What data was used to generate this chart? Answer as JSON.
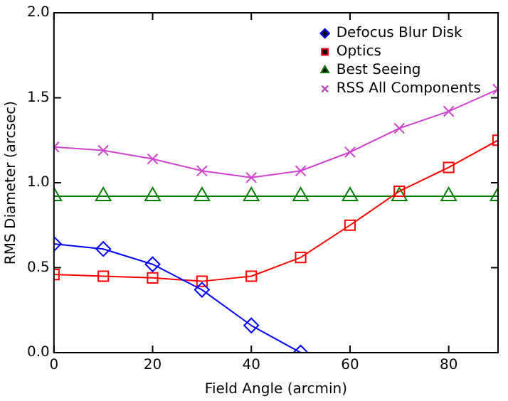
{
  "chart_data": {
    "type": "line",
    "xlabel": "Field Angle (arcmin)",
    "ylabel": "RMS Diameter (arcsec)",
    "x": [
      0,
      10,
      20,
      30,
      40,
      50,
      60,
      70,
      80,
      90
    ],
    "series": [
      {
        "name": "Defocus Blur Disk",
        "color": "#0000ff",
        "marker": "diamond",
        "x": [
          0,
          10,
          20,
          30,
          40,
          50
        ],
        "values": [
          0.64,
          0.61,
          0.52,
          0.37,
          0.16,
          0.0
        ]
      },
      {
        "name": "Optics",
        "color": "#ff0000",
        "marker": "square",
        "values": [
          0.46,
          0.45,
          0.44,
          0.42,
          0.45,
          0.56,
          0.75,
          0.95,
          1.09,
          1.25
        ]
      },
      {
        "name": "Best Seeing",
        "color": "#008000",
        "marker": "triangle",
        "values": [
          0.92,
          0.92,
          0.92,
          0.92,
          0.92,
          0.92,
          0.92,
          0.92,
          0.92,
          0.92
        ]
      },
      {
        "name": "RSS All Components",
        "color": "#cc44cc",
        "marker": "cross",
        "values": [
          1.21,
          1.19,
          1.14,
          1.07,
          1.03,
          1.07,
          1.18,
          1.32,
          1.42,
          1.55
        ]
      }
    ],
    "xlim": [
      0,
      90
    ],
    "xticks": [
      0,
      20,
      40,
      60,
      80
    ],
    "ylim": [
      0,
      2
    ],
    "yticks": [
      {
        "value": 0,
        "label": "0.0"
      },
      {
        "value": 0.5,
        "label": "0.5"
      },
      {
        "value": 1,
        "label": "1.0"
      },
      {
        "value": 1.5,
        "label": "1.5"
      },
      {
        "value": 2,
        "label": "2.0"
      }
    ],
    "legend": "top right",
    "grid": false
  }
}
